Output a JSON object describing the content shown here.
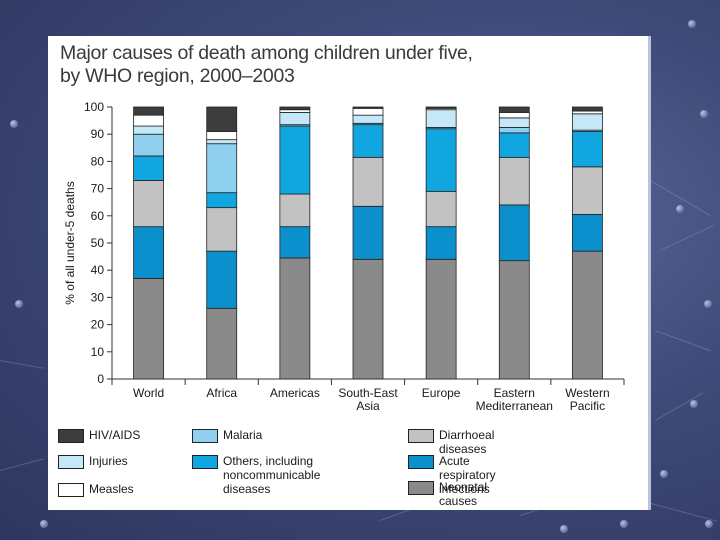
{
  "chart_data": {
    "type": "bar",
    "stacked": true,
    "title": "Major causes of death among children under five,\nby WHO region, 2000–2003",
    "xlabel": "",
    "ylabel": "% of all under-5 deaths",
    "ylim": [
      0,
      100
    ],
    "yticks": [
      "0",
      "10",
      "20",
      "30",
      "40",
      "50",
      "60",
      "70",
      "80",
      "90",
      "100"
    ],
    "categories": [
      "World",
      "Africa",
      "Americas",
      "South-East\nAsia",
      "Europe",
      "Eastern\nMediterranean",
      "Western\nPacific"
    ],
    "series": [
      {
        "name": "Neonatal causes",
        "color": "#8a8a8a",
        "values": [
          37,
          26,
          44.5,
          44,
          44,
          43.5,
          47
        ]
      },
      {
        "name": "Acute respiratory infections",
        "color": "#0b8fcd",
        "values": [
          19,
          21,
          11.5,
          19.5,
          12,
          20.5,
          13.5
        ]
      },
      {
        "name": "Diarrhoeal diseases",
        "color": "#c2c2c2",
        "values": [
          17,
          16,
          12,
          18,
          13,
          17.5,
          17.5
        ]
      },
      {
        "name": "Others, including noncommunicable diseases",
        "color": "#12a6e0",
        "values": [
          9,
          5.5,
          25,
          12,
          23,
          9,
          13
        ]
      },
      {
        "name": "Malaria",
        "color": "#8fd0ee",
        "values": [
          8,
          18,
          0.5,
          0.5,
          0.5,
          2,
          0.5
        ]
      },
      {
        "name": "Injuries",
        "color": "#c5e8f8",
        "values": [
          3,
          1.5,
          4.5,
          3,
          6.5,
          3.5,
          6
        ]
      },
      {
        "name": "Measles",
        "color": "#ffffff",
        "values": [
          4,
          3,
          1,
          2.5,
          0.5,
          2,
          1
        ]
      },
      {
        "name": "HIV/AIDS",
        "color": "#3d3d3d",
        "values": [
          3,
          9,
          1,
          0.5,
          0.5,
          2,
          1.5
        ]
      }
    ],
    "legend": [
      {
        "name": "HIV/AIDS",
        "color": "#3d3d3d"
      },
      {
        "name": "Injuries",
        "color": "#c5e8f8"
      },
      {
        "name": "Measles",
        "color": "#ffffff"
      },
      {
        "name": "Malaria",
        "color": "#8fd0ee"
      },
      {
        "name": "Others, including\nnoncommunicable diseases",
        "color": "#12a6e0"
      },
      {
        "name": "Diarrhoeal diseases",
        "color": "#c2c2c2"
      },
      {
        "name": "Acute respiratory infections",
        "color": "#0b8fcd"
      },
      {
        "name": "Neonatal causes",
        "color": "#8a8a8a"
      }
    ],
    "legend_position": "bottom"
  }
}
